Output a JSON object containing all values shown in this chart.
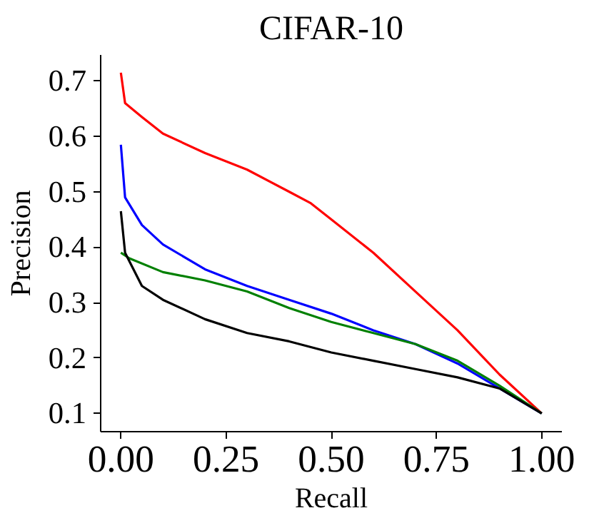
{
  "chart_data": {
    "type": "line",
    "title": "CIFAR-10",
    "xlabel": "Recall",
    "ylabel": "Precision",
    "xlim": [
      -0.048,
      1.048
    ],
    "ylim": [
      0.067,
      0.747
    ],
    "xticks": [
      {
        "value": 0,
        "label": "0.00"
      },
      0.25,
      {
        "value": 0.5,
        "label": "0.50"
      },
      0.75,
      {
        "value": 1,
        "label": "1.00"
      }
    ],
    "yticks": [
      0.1,
      0.2,
      0.3,
      0.4,
      0.5,
      0.6,
      0.7
    ],
    "grid": false,
    "line_style": "solid",
    "series": [
      {
        "color": "#ff0000",
        "x": [
          0,
          0.01,
          0.05,
          0.1,
          0.2,
          0.3,
          0.4,
          0.45,
          0.5,
          0.6,
          0.7,
          0.8,
          0.9,
          1.0
        ],
        "values": [
          0.715,
          0.66,
          0.635,
          0.605,
          0.57,
          0.54,
          0.5,
          0.48,
          0.45,
          0.39,
          0.32,
          0.25,
          0.17,
          0.1
        ]
      },
      {
        "color": "#0000ff",
        "x": [
          0,
          0.01,
          0.05,
          0.1,
          0.2,
          0.3,
          0.4,
          0.5,
          0.6,
          0.7,
          0.8,
          0.9,
          1.0
        ],
        "values": [
          0.585,
          0.49,
          0.44,
          0.405,
          0.36,
          0.33,
          0.305,
          0.28,
          0.25,
          0.225,
          0.19,
          0.145,
          0.1
        ]
      },
      {
        "color": "#008000",
        "x": [
          0,
          0.02,
          0.1,
          0.2,
          0.3,
          0.4,
          0.5,
          0.6,
          0.7,
          0.8,
          0.9,
          1.0
        ],
        "values": [
          0.39,
          0.38,
          0.355,
          0.34,
          0.32,
          0.29,
          0.265,
          0.245,
          0.225,
          0.195,
          0.15,
          0.1
        ]
      },
      {
        "color": "#000000",
        "x": [
          0,
          0.01,
          0.05,
          0.1,
          0.2,
          0.3,
          0.4,
          0.5,
          0.6,
          0.7,
          0.8,
          0.9,
          1.0
        ],
        "values": [
          0.465,
          0.39,
          0.33,
          0.305,
          0.27,
          0.245,
          0.23,
          0.21,
          0.195,
          0.18,
          0.165,
          0.145,
          0.1
        ]
      }
    ]
  }
}
